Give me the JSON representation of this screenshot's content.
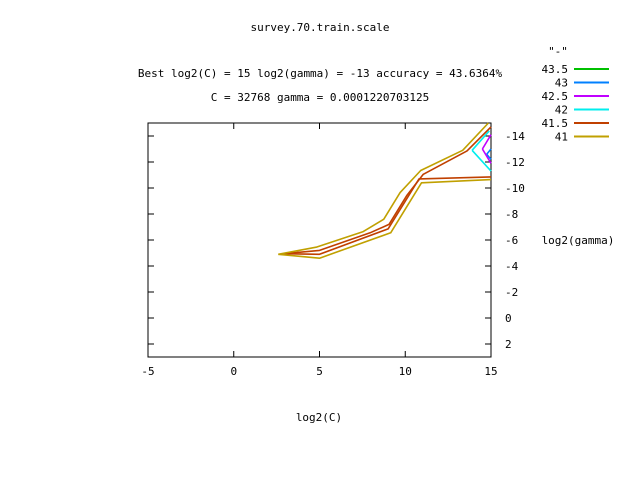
{
  "chart_data": {
    "type": "contour",
    "title": "survey.70.train.scale",
    "subtitle_best": "Best log2(C) = 15  log2(gamma) = -13  accuracy = 43.6364%",
    "subtitle_params": "C = 32768  gamma = 0.0001220703125",
    "xlabel": "log2(C)",
    "ylabel": "log2(gamma)",
    "xlim": [
      -5,
      15
    ],
    "ylim": [
      -15,
      3
    ],
    "y_reversed": true,
    "y_axis_side": "right",
    "x_ticks": [
      -5,
      0,
      5,
      10,
      15
    ],
    "y_ticks": [
      -14,
      -12,
      -10,
      -8,
      -6,
      -4,
      -2,
      0,
      2
    ],
    "legend_title": "\"-\"",
    "legend_position": "right",
    "grid": false,
    "series": [
      {
        "name": "43.5",
        "color": "#00c000",
        "lines": []
      },
      {
        "name": "43",
        "color": "#0080ff",
        "lines": [
          [
            [
              14.75,
              -12.6
            ],
            [
              15,
              -12.2
            ]
          ],
          [
            [
              14.75,
              -12.6
            ],
            [
              15,
              -13.0
            ]
          ]
        ]
      },
      {
        "name": "42.5",
        "color": "#c000ff",
        "lines": [
          [
            [
              14.5,
              -13.0
            ],
            [
              15,
              -14.1
            ]
          ],
          [
            [
              14.5,
              -13.0
            ],
            [
              15,
              -11.9
            ]
          ]
        ]
      },
      {
        "name": "42",
        "color": "#00eeee",
        "lines": [
          [
            [
              13.9,
              -12.9
            ],
            [
              14.9,
              -14.4
            ]
          ],
          [
            [
              13.9,
              -12.9
            ],
            [
              15,
              -11.3
            ]
          ]
        ]
      },
      {
        "name": "41.5",
        "color": "#c04000",
        "lines": [
          [
            [
              15,
              -14.7
            ],
            [
              13.6,
              -12.85
            ],
            [
              11.05,
              -11.05
            ],
            [
              10.1,
              -9.45
            ],
            [
              9.05,
              -7.2
            ],
            [
              7.95,
              -6.55
            ],
            [
              5.0,
              -5.2
            ],
            [
              2.9,
              -4.95
            ]
          ],
          [
            [
              2.9,
              -4.95
            ],
            [
              5.0,
              -4.9
            ],
            [
              9.0,
              -6.85
            ],
            [
              10.8,
              -10.7
            ],
            [
              15,
              -10.85
            ]
          ]
        ]
      },
      {
        "name": "41",
        "color": "#c0a000",
        "lines": [
          [
            [
              14.85,
              -15.0
            ],
            [
              13.35,
              -12.9
            ],
            [
              10.9,
              -11.35
            ],
            [
              9.7,
              -9.65
            ],
            [
              8.75,
              -7.6
            ],
            [
              7.55,
              -6.65
            ],
            [
              4.8,
              -5.45
            ],
            [
              2.6,
              -4.9
            ]
          ],
          [
            [
              2.6,
              -4.9
            ],
            [
              5.0,
              -4.6
            ],
            [
              9.15,
              -6.55
            ],
            [
              10.95,
              -10.4
            ],
            [
              15,
              -10.65
            ]
          ]
        ]
      }
    ]
  }
}
